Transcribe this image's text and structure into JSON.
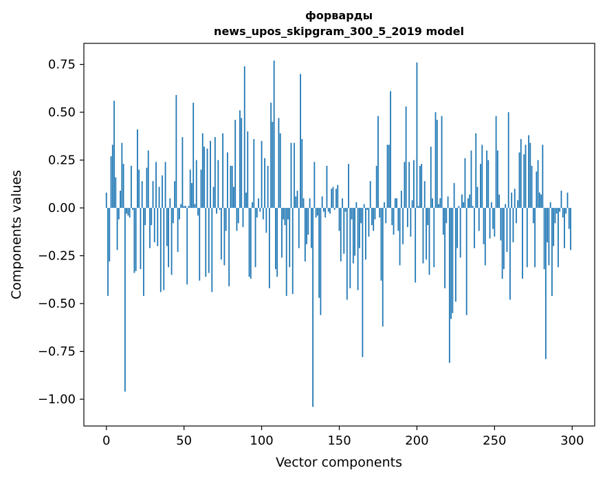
{
  "chart_data": {
    "type": "bar",
    "title": "форварды",
    "subtitle": "news_upos_skipgram_300_5_2019 model",
    "xlabel": "Vector components",
    "ylabel": "Components values",
    "xlim": [
      -14.5,
      314.5
    ],
    "ylim": [
      -1.14,
      0.86
    ],
    "xticks": [
      0,
      50,
      100,
      150,
      200,
      250,
      300
    ],
    "yticks": [
      -1.0,
      -0.75,
      -0.5,
      -0.25,
      0.0,
      0.25,
      0.5,
      0.75
    ],
    "ytick_labels": [
      "−1.00",
      "−0.75",
      "−0.50",
      "−0.25",
      "0.00",
      "0.25",
      "0.50",
      "0.75"
    ],
    "bar_color": "#1f77b4",
    "values": [
      0.08,
      -0.46,
      -0.28,
      0.27,
      0.33,
      0.56,
      0.16,
      -0.22,
      -0.06,
      0.09,
      0.34,
      0.23,
      -0.96,
      -0.03,
      -0.04,
      -0.05,
      0.22,
      -0.01,
      -0.34,
      -0.33,
      0.41,
      0.2,
      -0.32,
      0.14,
      -0.46,
      -0.09,
      0.21,
      0.3,
      -0.21,
      -0.09,
      0.14,
      -0.18,
      0.24,
      -0.2,
      0.11,
      -0.44,
      0.17,
      -0.43,
      0.24,
      -0.2,
      -0.31,
      0.05,
      -0.35,
      -0.08,
      0.14,
      0.59,
      -0.23,
      -0.06,
      0.02,
      0.37,
      0.01,
      0.01,
      -0.4,
      0.01,
      0.2,
      0.13,
      0.55,
      0.02,
      0.25,
      -0.04,
      -0.38,
      0.2,
      0.39,
      0.32,
      -0.36,
      0.31,
      -0.34,
      0.35,
      -0.44,
      0.11,
      0.37,
      -0.03,
      0.25,
      -0.01,
      -0.27,
      0.39,
      -0.3,
      -0.12,
      0.29,
      -0.41,
      0.22,
      0.22,
      0.11,
      0.46,
      -0.12,
      -0.08,
      0.51,
      0.47,
      -0.1,
      0.74,
      0.08,
      0.4,
      -0.36,
      -0.37,
      0.03,
      0.36,
      -0.31,
      -0.05,
      0.05,
      -0.02,
      0.35,
      -0.06,
      0.26,
      -0.13,
      0.22,
      -0.42,
      0.55,
      0.45,
      0.77,
      -0.32,
      -0.36,
      0.47,
      0.39,
      -0.26,
      -0.06,
      -0.09,
      -0.46,
      -0.06,
      -0.31,
      0.34,
      -0.45,
      0.34,
      0.06,
      0.09,
      -0.21,
      0.7,
      0.36,
      0.05,
      -0.28,
      -0.19,
      -0.14,
      0.05,
      -0.21,
      -1.04,
      0.24,
      -0.05,
      -0.04,
      -0.47,
      -0.56,
      0.06,
      -0.02,
      -0.05,
      0.22,
      -0.02,
      -0.03,
      0.1,
      0.11,
      -0.01,
      0.1,
      0.12,
      -0.12,
      -0.28,
      0.05,
      -0.24,
      -0.02,
      -0.48,
      0.23,
      -0.42,
      -0.06,
      -0.29,
      -0.25,
      0.03,
      -0.43,
      -0.21,
      -0.08,
      -0.78,
      0.02,
      -0.27,
      -0.01,
      -0.15,
      0.14,
      -0.09,
      -0.12,
      -0.06,
      0.22,
      0.48,
      -0.05,
      -0.38,
      -0.62,
      0.03,
      -0.08,
      0.33,
      0.33,
      0.61,
      -0.09,
      -0.14,
      0.05,
      0.05,
      -0.12,
      -0.3,
      0.09,
      -0.19,
      0.24,
      0.53,
      -0.1,
      0.24,
      -0.15,
      0.04,
      0.25,
      -0.39,
      0.76,
      0.01,
      0.22,
      0.23,
      -0.29,
      0.14,
      -0.27,
      -0.09,
      -0.35,
      0.32,
      0.05,
      -0.31,
      0.5,
      0.46,
      0.02,
      0.05,
      0.48,
      -0.14,
      -0.42,
      -0.08,
      0.06,
      -0.81,
      -0.58,
      -0.55,
      0.13,
      -0.49,
      -0.21,
      0.01,
      -0.26,
      0.07,
      0.03,
      0.26,
      -0.56,
      0.05,
      0.07,
      0.3,
      0.01,
      -0.21,
      0.39,
      0.11,
      -0.12,
      0.23,
      0.33,
      -0.19,
      -0.3,
      0.3,
      0.25,
      -0.16,
      0.03,
      -0.11,
      -0.15,
      0.48,
      0.3,
      0.07,
      -0.17,
      -0.37,
      -0.32,
      0.02,
      -0.23,
      0.5,
      -0.48,
      0.08,
      -0.18,
      0.1,
      -0.08,
      0.04,
      0.29,
      0.36,
      -0.37,
      0.28,
      0.33,
      -0.31,
      0.38,
      0.34,
      0.22,
      -0.08,
      -0.31,
      0.19,
      0.25,
      0.08,
      0.07,
      0.33,
      -0.32,
      -0.79,
      -0.18,
      -0.3,
      0.03,
      -0.46,
      -0.2,
      -0.08,
      -0.03,
      -0.31,
      -0.02,
      0.09,
      -0.05,
      -0.21,
      -0.03,
      0.08,
      -0.11,
      -0.22
    ]
  }
}
